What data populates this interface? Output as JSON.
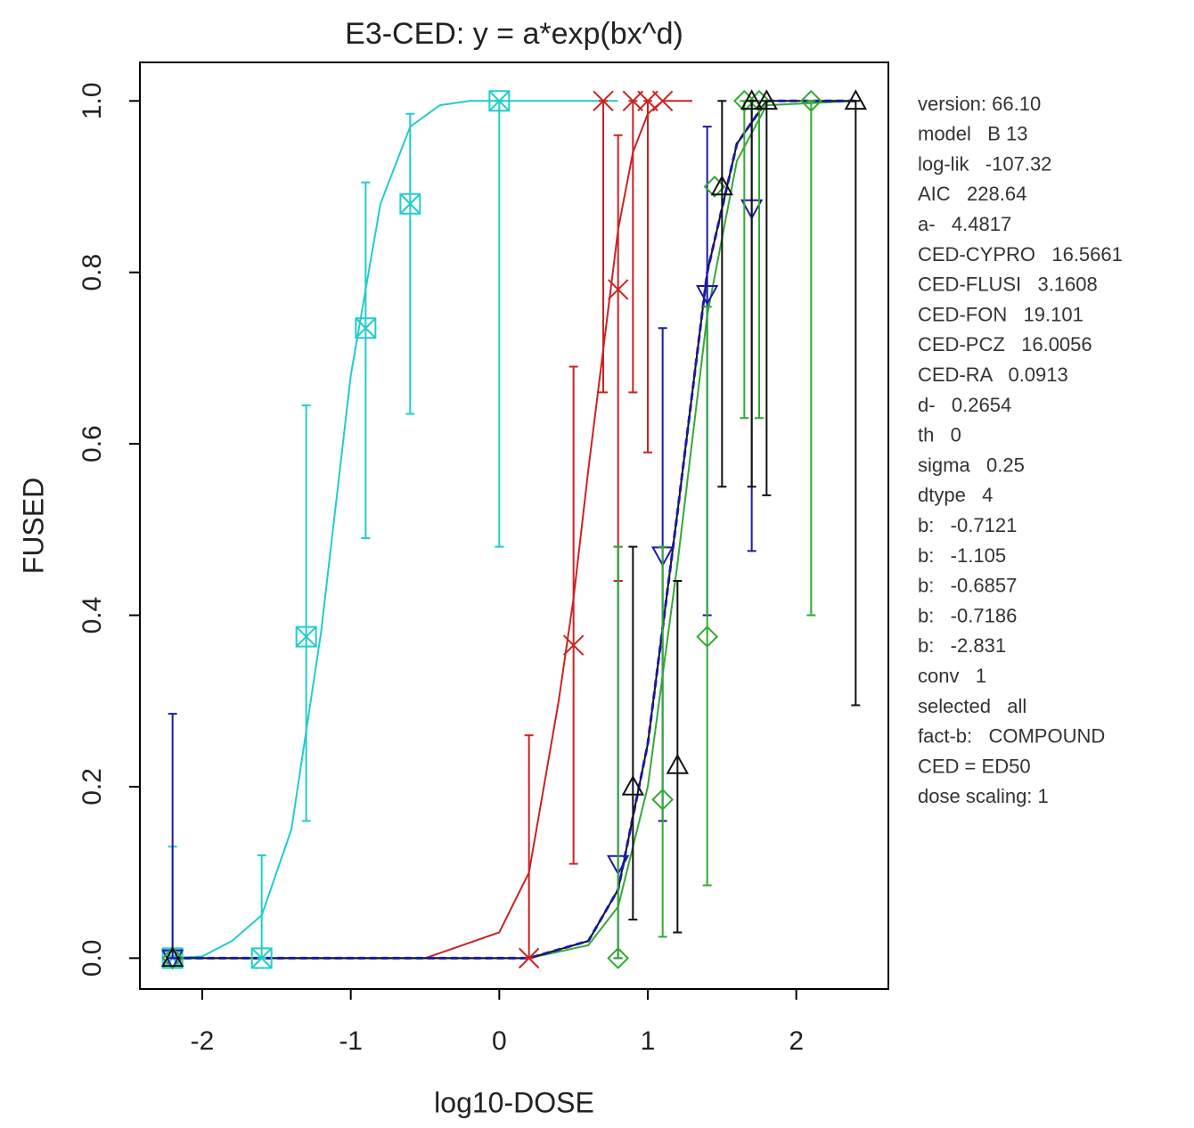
{
  "chart_data": {
    "type": "scatter",
    "title": "E3-CED: y = a*exp(bx^d)",
    "x_label": "log10-DOSE",
    "y_label": "FUSED",
    "xlim": [
      -2.42,
      2.62
    ],
    "ylim": [
      -0.036,
      1.045
    ],
    "xticks": [
      -2,
      -1,
      0,
      1,
      2
    ],
    "yticks": [
      {
        "value": 0,
        "label": "0.0"
      },
      0.2,
      0.4,
      0.6,
      0.8,
      {
        "value": 1,
        "label": "1.0"
      }
    ],
    "series": [
      {
        "color": "#22cccc",
        "marker": "square",
        "x": [
          -2.2,
          -1.6,
          -1.3,
          -0.9,
          -0.6,
          0
        ],
        "values": [
          0,
          0,
          0.375,
          0.735,
          0.88,
          1.0
        ],
        "lower": [
          0,
          0,
          0.16,
          0.49,
          0.635,
          0.48
        ],
        "upper": [
          0.13,
          0.12,
          0.645,
          0.905,
          0.985,
          1.0
        ]
      },
      {
        "color": "#cc2222",
        "marker": "cross",
        "x": [
          0.2,
          0.5,
          0.8,
          0.7,
          0.9,
          1.0,
          1.1
        ],
        "values": [
          0,
          0.365,
          0.78,
          1.0,
          1.0,
          1.0,
          1.0
        ],
        "lower": [
          0,
          0.11,
          0.44,
          0.66,
          0.66,
          0.59,
          null
        ],
        "upper": [
          0.26,
          0.69,
          0.96,
          1.0,
          1.0,
          1.0,
          null
        ]
      },
      {
        "color": "#1a1aaa",
        "marker": "tri-down",
        "x": [
          -2.2,
          0.8,
          1.1,
          1.4,
          1.7
        ],
        "values": [
          0,
          0.11,
          0.47,
          0.775,
          0.875
        ],
        "lower": [
          0,
          0,
          0.16,
          0.4,
          0.475
        ],
        "upper": [
          0.285,
          0.48,
          0.735,
          0.97,
          1.0
        ]
      },
      {
        "color": "#33aa33",
        "marker": "diamond",
        "x": [
          -2.2,
          0.8,
          1.1,
          1.4,
          1.45,
          1.65,
          1.75,
          2.1
        ],
        "values": [
          0,
          0,
          0.185,
          0.375,
          0.9,
          1.0,
          1.0,
          1.0
        ],
        "lower": [
          null,
          0,
          0.025,
          0.085,
          null,
          0.63,
          0.63,
          0.4
        ],
        "upper": [
          null,
          0.48,
          0.48,
          0.76,
          null,
          1.0,
          1.0,
          1.0
        ]
      },
      {
        "color": "#111111",
        "marker": "tri-up",
        "x": [
          -2.2,
          0.9,
          1.2,
          1.5,
          1.7,
          1.8,
          2.4
        ],
        "values": [
          0,
          0.2,
          0.225,
          0.9,
          1.0,
          1.0,
          1.0
        ],
        "lower": [
          null,
          0.045,
          0.03,
          0.55,
          0.55,
          0.54,
          0.295
        ],
        "upper": [
          null,
          0.48,
          0.44,
          1.0,
          1.0,
          1.0,
          1.0
        ]
      }
    ],
    "curves": [
      {
        "color": "#22cccc",
        "dash": false,
        "x": [
          -2.2,
          -2.0,
          -1.8,
          -1.6,
          -1.4,
          -1.2,
          -1.0,
          -0.8,
          -0.6,
          -0.4,
          -0.2,
          0,
          0.8
        ],
        "values": [
          0,
          0.002,
          0.02,
          0.05,
          0.15,
          0.38,
          0.68,
          0.88,
          0.97,
          0.995,
          1.0,
          1.0,
          1.0
        ]
      },
      {
        "color": "#cc2222",
        "dash": false,
        "x": [
          -2.2,
          -0.5,
          0,
          0.2,
          0.4,
          0.5,
          0.6,
          0.8,
          0.9,
          1.0,
          1.1,
          1.3
        ],
        "values": [
          0,
          0,
          0.03,
          0.1,
          0.3,
          0.42,
          0.57,
          0.85,
          0.94,
          0.985,
          1.0,
          1.0
        ]
      },
      {
        "color": "#33aa33",
        "dash": false,
        "x": [
          -2.2,
          0.2,
          0.6,
          0.8,
          1.0,
          1.2,
          1.4,
          1.6,
          1.8,
          2.4
        ],
        "values": [
          0,
          0,
          0.015,
          0.06,
          0.2,
          0.46,
          0.75,
          0.93,
          0.995,
          1.0
        ]
      },
      {
        "color": "#111111",
        "dash": false,
        "x": [
          -2.2,
          0.2,
          0.6,
          0.8,
          1.0,
          1.2,
          1.4,
          1.6,
          1.8,
          2.4
        ],
        "values": [
          0,
          0,
          0.02,
          0.08,
          0.25,
          0.52,
          0.8,
          0.95,
          1.0,
          1.0
        ]
      },
      {
        "color": "#1a1aaa",
        "dash": true,
        "x": [
          -2.2,
          0.2,
          0.6,
          0.8,
          1.0,
          1.2,
          1.4,
          1.6,
          1.8,
          2.4
        ],
        "values": [
          0,
          0,
          0.02,
          0.08,
          0.25,
          0.52,
          0.8,
          0.95,
          1.0,
          1.0
        ]
      }
    ],
    "annotations": [
      "version: 66.10",
      "model   B 13",
      "log-lik   -107.32",
      "AIC   228.64",
      "a-   4.4817",
      "CED-CYPRO   16.5661",
      "CED-FLUSI   3.1608",
      "CED-FON   19.101",
      "CED-PCZ   16.0056",
      "CED-RA   0.0913",
      "d-   0.2654",
      "th   0",
      "sigma   0.25",
      "dtype   4",
      "b:   -0.7121",
      "b:   -1.105",
      "b:   -0.6857",
      "b:   -0.7186",
      "b:   -2.831",
      "conv   1",
      "selected   all",
      "fact-b:   COMPOUND",
      "CED = ED50",
      "dose scaling: 1"
    ]
  }
}
